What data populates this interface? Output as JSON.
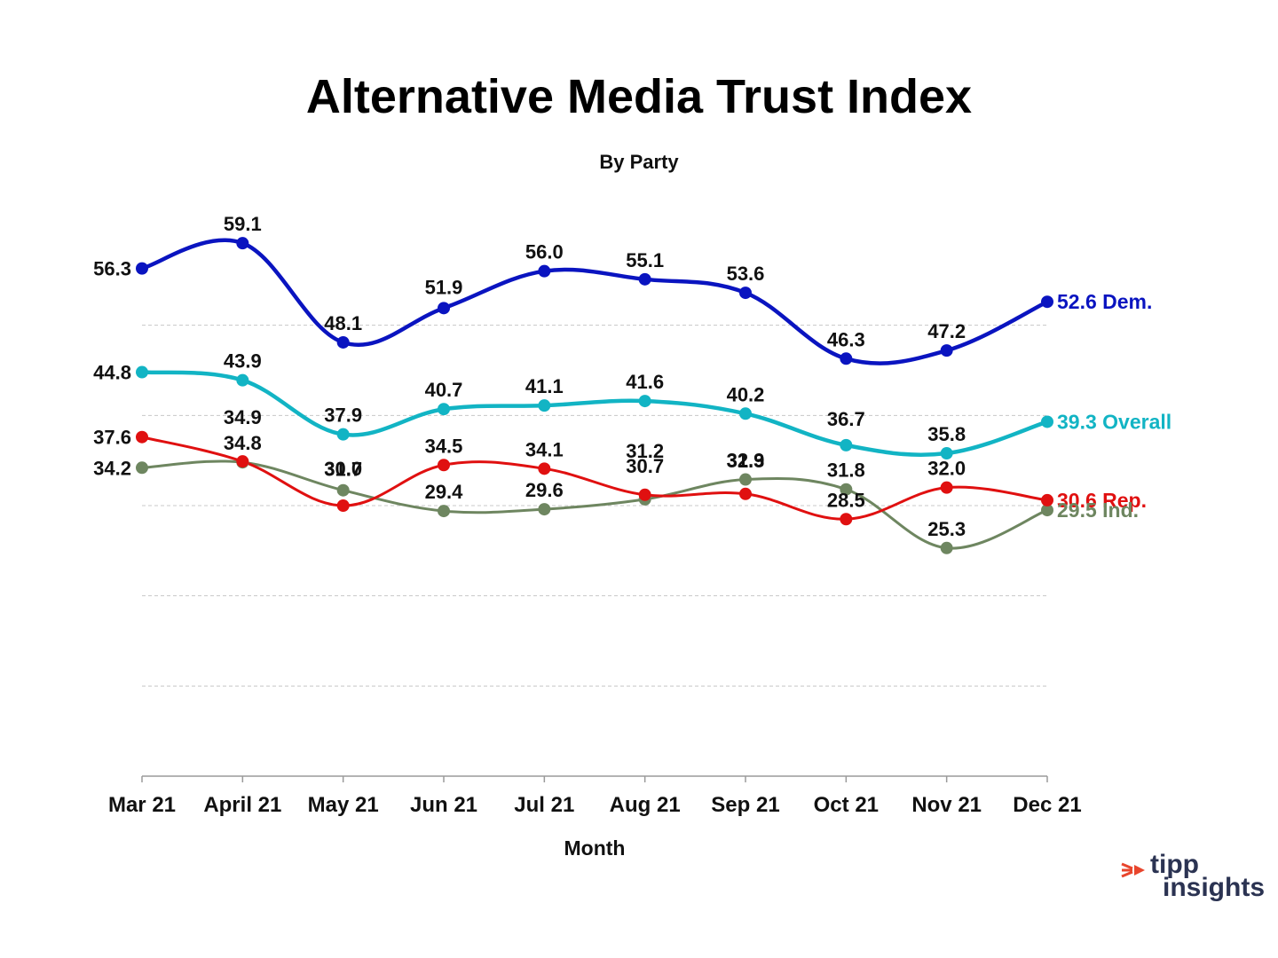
{
  "title": "Alternative Media Trust Index",
  "subtitle": "By Party",
  "chart_data": {
    "type": "line",
    "title": "Alternative Media Trust Index",
    "subtitle": "By Party",
    "xlabel": "Month",
    "ylabel": "",
    "categories": [
      "Mar 21",
      "April 21",
      "May 21",
      "Jun 21",
      "Jul 21",
      "Aug 21",
      "Sep 21",
      "Oct 21",
      "Nov 21",
      "Dec 21"
    ],
    "ylim": [
      0,
      60
    ],
    "grid": true,
    "series": [
      {
        "name": "Dem.",
        "color": "#0a14c0",
        "end_label": "52.6 Dem.",
        "values": [
          56.3,
          59.1,
          48.1,
          51.9,
          56.0,
          55.1,
          53.6,
          46.3,
          47.2,
          52.6
        ]
      },
      {
        "name": "Overall",
        "color": "#12b4c4",
        "end_label": "39.3 Overall",
        "values": [
          44.8,
          43.9,
          37.9,
          40.7,
          41.1,
          41.6,
          40.2,
          36.7,
          35.8,
          39.3
        ]
      },
      {
        "name": "Rep.",
        "color": "#e01010",
        "end_label": "30.6 Rep.",
        "values": [
          37.6,
          34.9,
          30.0,
          34.5,
          34.1,
          31.2,
          31.3,
          28.5,
          32.0,
          30.6
        ]
      },
      {
        "name": "Ind.",
        "color": "#6e8660",
        "end_label": "29.5 Ind.",
        "values": [
          34.2,
          34.8,
          31.7,
          29.4,
          29.6,
          30.7,
          32.9,
          31.8,
          25.3,
          29.5
        ]
      }
    ]
  },
  "logo": {
    "line1": "tipp",
    "line2": "insights",
    "accent": "#e8452c"
  }
}
